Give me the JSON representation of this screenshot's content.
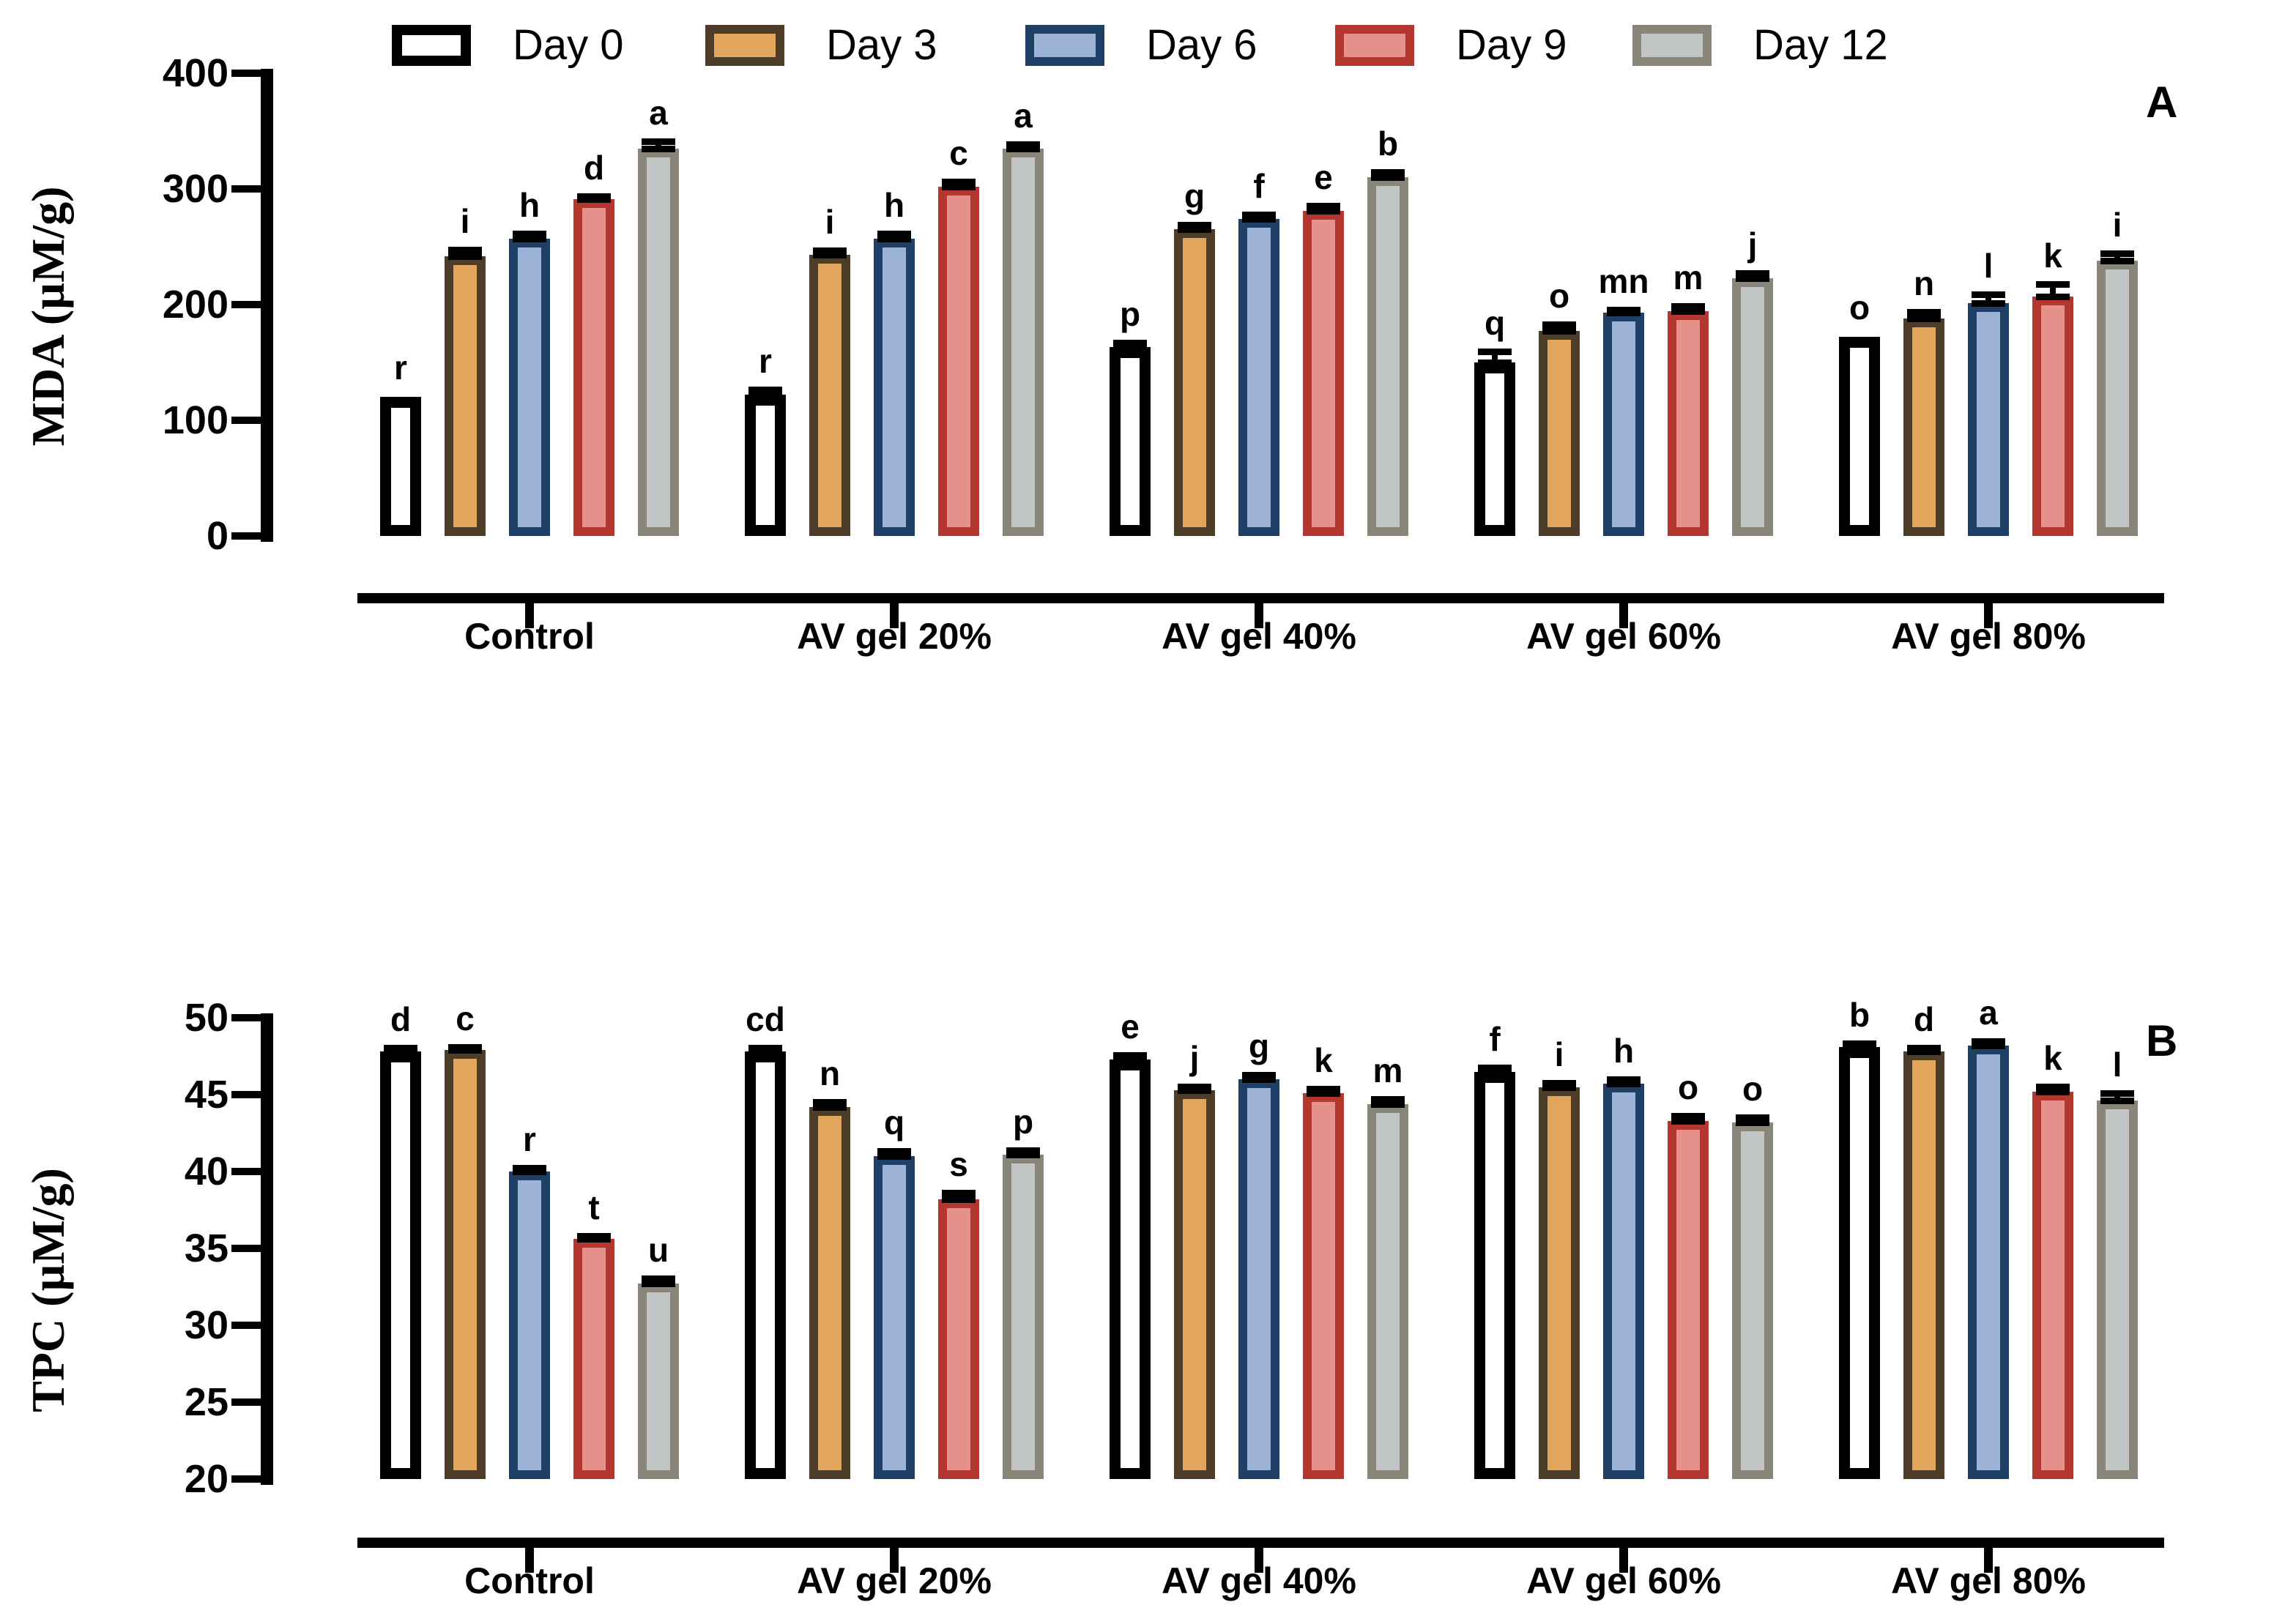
{
  "figure": {
    "background": "#ffffff",
    "panel_a_label": "A",
    "panel_b_label": "B"
  },
  "legend": {
    "items": [
      {
        "label": "Day 0",
        "fill": "#ffffff",
        "border": "#000000"
      },
      {
        "label": "Day 3",
        "fill": "#E2A55C",
        "border": "#4D3D28"
      },
      {
        "label": "Day 6",
        "fill": "#9DB3D5",
        "border": "#1F4066"
      },
      {
        "label": "Day 9",
        "fill": "#E5908A",
        "border": "#B3362F"
      },
      {
        "label": "Day 12",
        "fill": "#C2C5C6",
        "border": "#8A8579"
      }
    ]
  },
  "chart_data": [
    {
      "type": "bar",
      "panel_label": "A",
      "ylabel": "MDA (µM/g)",
      "xlabel": "",
      "ylim": [
        0,
        400
      ],
      "yticks": [
        0,
        100,
        200,
        300,
        400
      ],
      "grid": false,
      "legend_position": "top",
      "categories": [
        "Control",
        "AV gel 20%",
        "AV gel 40%",
        "AV gel 60%",
        "AV gel 80%"
      ],
      "series": [
        {
          "name": "Day 0",
          "values": [
            120,
            122,
            163,
            150,
            172
          ],
          "errors": [
            0,
            4,
            3,
            9,
            0
          ],
          "letters": [
            "r",
            "r",
            "p",
            "q",
            "o"
          ]
        },
        {
          "name": "Day 3",
          "values": [
            242,
            243,
            265,
            177,
            188
          ],
          "errors": [
            5,
            3,
            3,
            5,
            5
          ],
          "letters": [
            "i",
            "i",
            "g",
            "o",
            "n"
          ]
        },
        {
          "name": "Day 6",
          "values": [
            257,
            257,
            274,
            193,
            201
          ],
          "errors": [
            4,
            4,
            3,
            2,
            7
          ],
          "letters": [
            "h",
            "h",
            "f",
            "mn",
            "l"
          ]
        },
        {
          "name": "Day 9",
          "values": [
            291,
            302,
            281,
            194,
            207
          ],
          "errors": [
            2,
            4,
            4,
            4,
            10
          ],
          "letters": [
            "d",
            "c",
            "e",
            "m",
            "k"
          ]
        },
        {
          "name": "Day 12",
          "values": [
            335,
            335,
            310,
            223,
            238
          ],
          "errors": [
            6,
            3,
            4,
            4,
            6
          ],
          "letters": [
            "a",
            "a",
            "b",
            "j",
            "i"
          ]
        }
      ]
    },
    {
      "type": "bar",
      "panel_label": "B",
      "ylabel": "TPC (µM/g)",
      "xlabel": "",
      "ylim": [
        20,
        50
      ],
      "yticks": [
        20,
        25,
        30,
        35,
        40,
        45,
        50
      ],
      "grid": false,
      "legend_position": "none",
      "categories": [
        "Control",
        "AV gel 20%",
        "AV gel 40%",
        "AV gel 60%",
        "AV gel 80%"
      ],
      "series": [
        {
          "name": "Day 0",
          "values": [
            47.8,
            47.8,
            47.3,
            46.5,
            48.1
          ],
          "errors": [
            0.2,
            0.2,
            0.25,
            0.25,
            0.2
          ],
          "letters": [
            "d",
            "cd",
            "e",
            "f",
            "b"
          ]
        },
        {
          "name": "Day 3",
          "values": [
            47.9,
            44.2,
            45.3,
            45.5,
            47.8
          ],
          "errors": [
            0.15,
            0.3,
            0.2,
            0.25,
            0.2
          ],
          "letters": [
            "c",
            "n",
            "j",
            "i",
            "d"
          ]
        },
        {
          "name": "Day 6",
          "values": [
            40.0,
            41.0,
            46.0,
            45.7,
            48.2
          ],
          "errors": [
            0.2,
            0.3,
            0.25,
            0.25,
            0.25
          ],
          "letters": [
            "r",
            "q",
            "g",
            "h",
            "a"
          ]
        },
        {
          "name": "Day 9",
          "values": [
            35.6,
            38.2,
            45.1,
            43.3,
            45.2
          ],
          "errors": [
            0.15,
            0.4,
            0.25,
            0.3,
            0.3
          ],
          "letters": [
            "t",
            "s",
            "k",
            "o",
            "k"
          ]
        },
        {
          "name": "Day 12",
          "values": [
            32.7,
            41.1,
            44.4,
            43.2,
            44.6
          ],
          "errors": [
            0.3,
            0.25,
            0.3,
            0.3,
            0.45
          ],
          "letters": [
            "u",
            "p",
            "m",
            "o",
            "l"
          ]
        }
      ]
    }
  ]
}
